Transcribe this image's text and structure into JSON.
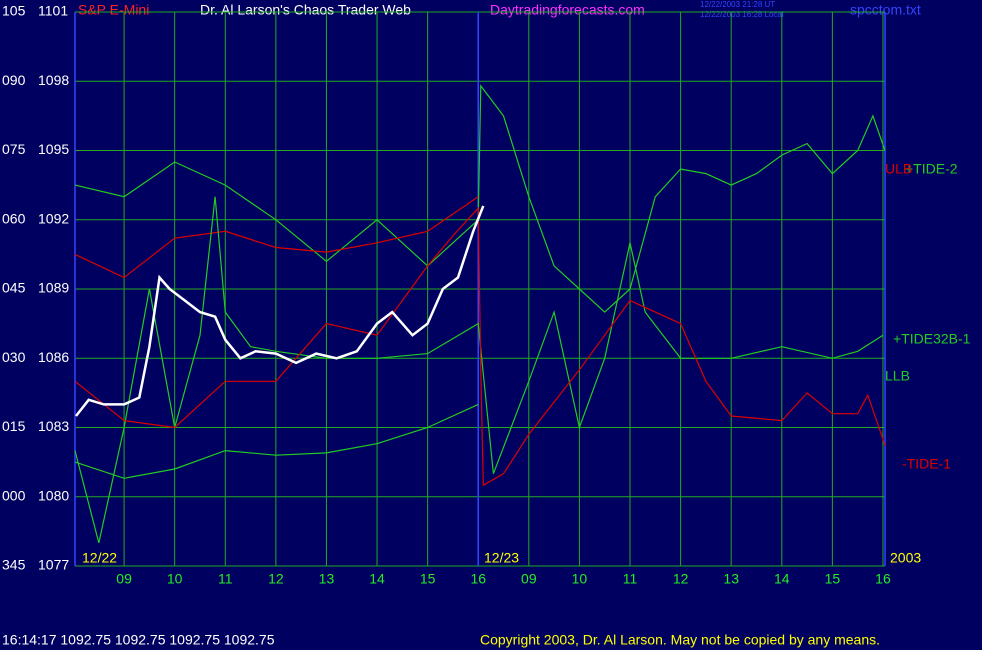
{
  "header": {
    "instrument": "S&P E-Mini",
    "site_title": "Dr. Al Larson's Chaos Trader Web",
    "url": "Daytradingforecasts.com",
    "ut_time": "12/22/2003 21:28 UT",
    "local_time": "12/22/2003 16:28 Local",
    "file": "spcctom.txt"
  },
  "chart_data": {
    "type": "line",
    "ylim": [
      1077,
      1101
    ],
    "yticks": [
      1101,
      1098,
      1095,
      1092,
      1089,
      1086,
      1083,
      1080,
      1077
    ],
    "angle_labels": [
      "105",
      "090",
      "075",
      "060",
      "045",
      "030",
      "015",
      "000",
      "345"
    ],
    "xlim": [
      8.03,
      24.04
    ],
    "xticks": [
      {
        "value": 9,
        "label": "09"
      },
      10,
      11,
      12,
      13,
      14,
      15,
      16,
      {
        "value": 17,
        "label": "09"
      },
      {
        "value": 18,
        "label": "10"
      },
      {
        "value": 19,
        "label": "11"
      },
      {
        "value": 20,
        "label": "12"
      },
      {
        "value": 21,
        "label": "13"
      },
      {
        "value": 22,
        "label": "14"
      },
      {
        "value": 23,
        "label": "15"
      },
      {
        "value": 24,
        "label": "16"
      }
    ],
    "day_labels": [
      "12/22",
      "12/23",
      "2003"
    ],
    "grid": true,
    "series": [
      {
        "name": "+TIDE-2",
        "color": "#22cc22",
        "x": [
          8.03,
          9,
          10,
          11,
          12,
          13,
          14,
          15,
          16,
          16.05,
          16.5,
          17,
          17.5,
          18,
          18.5,
          19,
          19.5,
          20,
          20.5,
          21,
          21.5,
          22,
          22.5,
          23,
          23.5,
          23.8,
          24.04
        ],
        "values": [
          1093.5,
          1093,
          1094.5,
          1093.5,
          1092,
          1090.2,
          1092,
          1090,
          1092,
          1097.8,
          1096.5,
          1093,
          1090,
          1089,
          1088,
          1089,
          1093,
          1094.2,
          1094,
          1093.5,
          1094,
          1094.8,
          1095.3,
          1094,
          1095,
          1096.5,
          1095
        ]
      },
      {
        "name": "ULB",
        "color": "#dd0000",
        "x": [
          8.03,
          9,
          10,
          11,
          12,
          13,
          14,
          15,
          16
        ],
        "values": [
          1090.5,
          1089.5,
          1091.2,
          1091.5,
          1090.8,
          1090.6,
          1091,
          1091.5,
          1093
        ]
      },
      {
        "name": "+TIDE32B-1",
        "color": "#22cc22",
        "x": [
          8.03,
          8.5,
          9,
          9.5,
          10,
          10.5,
          10.8,
          11,
          11.5,
          12,
          13,
          14,
          15,
          16,
          16.3,
          17,
          17.5,
          18,
          18.5,
          19,
          19.3,
          20,
          21,
          22,
          23,
          23.5,
          24
        ],
        "values": [
          1082,
          1078,
          1083,
          1089,
          1083,
          1087,
          1093,
          1088,
          1086.5,
          1086.3,
          1086,
          1086,
          1086.2,
          1087.5,
          1081,
          1085,
          1088,
          1083,
          1086,
          1091,
          1088,
          1086,
          1086,
          1086.5,
          1086,
          1086.3,
          1087
        ]
      },
      {
        "name": "LLB",
        "color": "#22cc22",
        "x": [
          8.03,
          9,
          10,
          11,
          12,
          13,
          14,
          15,
          16
        ],
        "values": [
          1081.5,
          1080.8,
          1081.2,
          1082,
          1081.8,
          1081.9,
          1082.3,
          1083,
          1084
        ]
      },
      {
        "name": "-TIDE-1",
        "color": "#dd0000",
        "x": [
          8.03,
          9,
          10,
          11,
          12,
          13,
          14,
          15,
          15.5,
          16,
          16.05,
          16.1,
          16.5,
          17,
          18,
          18.5,
          19,
          20,
          20.5,
          21,
          22,
          22.5,
          23,
          23.5,
          23.7,
          24,
          24.04
        ],
        "values": [
          1085,
          1083.3,
          1083,
          1085,
          1085,
          1087.5,
          1087,
          1090,
          1091.3,
          1092.5,
          1085.5,
          1080.5,
          1081,
          1082.7,
          1085.5,
          1087,
          1088.5,
          1087.5,
          1085,
          1083.5,
          1083.3,
          1084.5,
          1083.6,
          1083.6,
          1084.4,
          1082.5,
          1082.2
        ]
      },
      {
        "color": "#ffffff",
        "x": [
          8.05,
          8.3,
          8.6,
          9.0,
          9.3,
          9.5,
          9.7,
          9.9,
          10.2,
          10.5,
          10.8,
          11.0,
          11.3,
          11.6,
          12.0,
          12.4,
          12.8,
          13.2,
          13.6,
          14.0,
          14.3,
          14.7,
          15.0,
          15.3,
          15.6,
          15.9,
          16.1
        ],
        "values": [
          1083.5,
          1084.2,
          1084,
          1084,
          1084.3,
          1086.5,
          1089.5,
          1089,
          1088.5,
          1088,
          1087.8,
          1086.8,
          1086,
          1086.3,
          1086.2,
          1085.8,
          1086.2,
          1086,
          1086.3,
          1087.5,
          1088,
          1087,
          1087.5,
          1089,
          1089.5,
          1091.5,
          1092.6
        ]
      }
    ]
  },
  "footer": {
    "quote": "16:14:17  1092.75 1092.75 1092.75 1092.75",
    "copyright": "Copyright 2003, Dr. Al Larson. May not be copied by any means."
  }
}
